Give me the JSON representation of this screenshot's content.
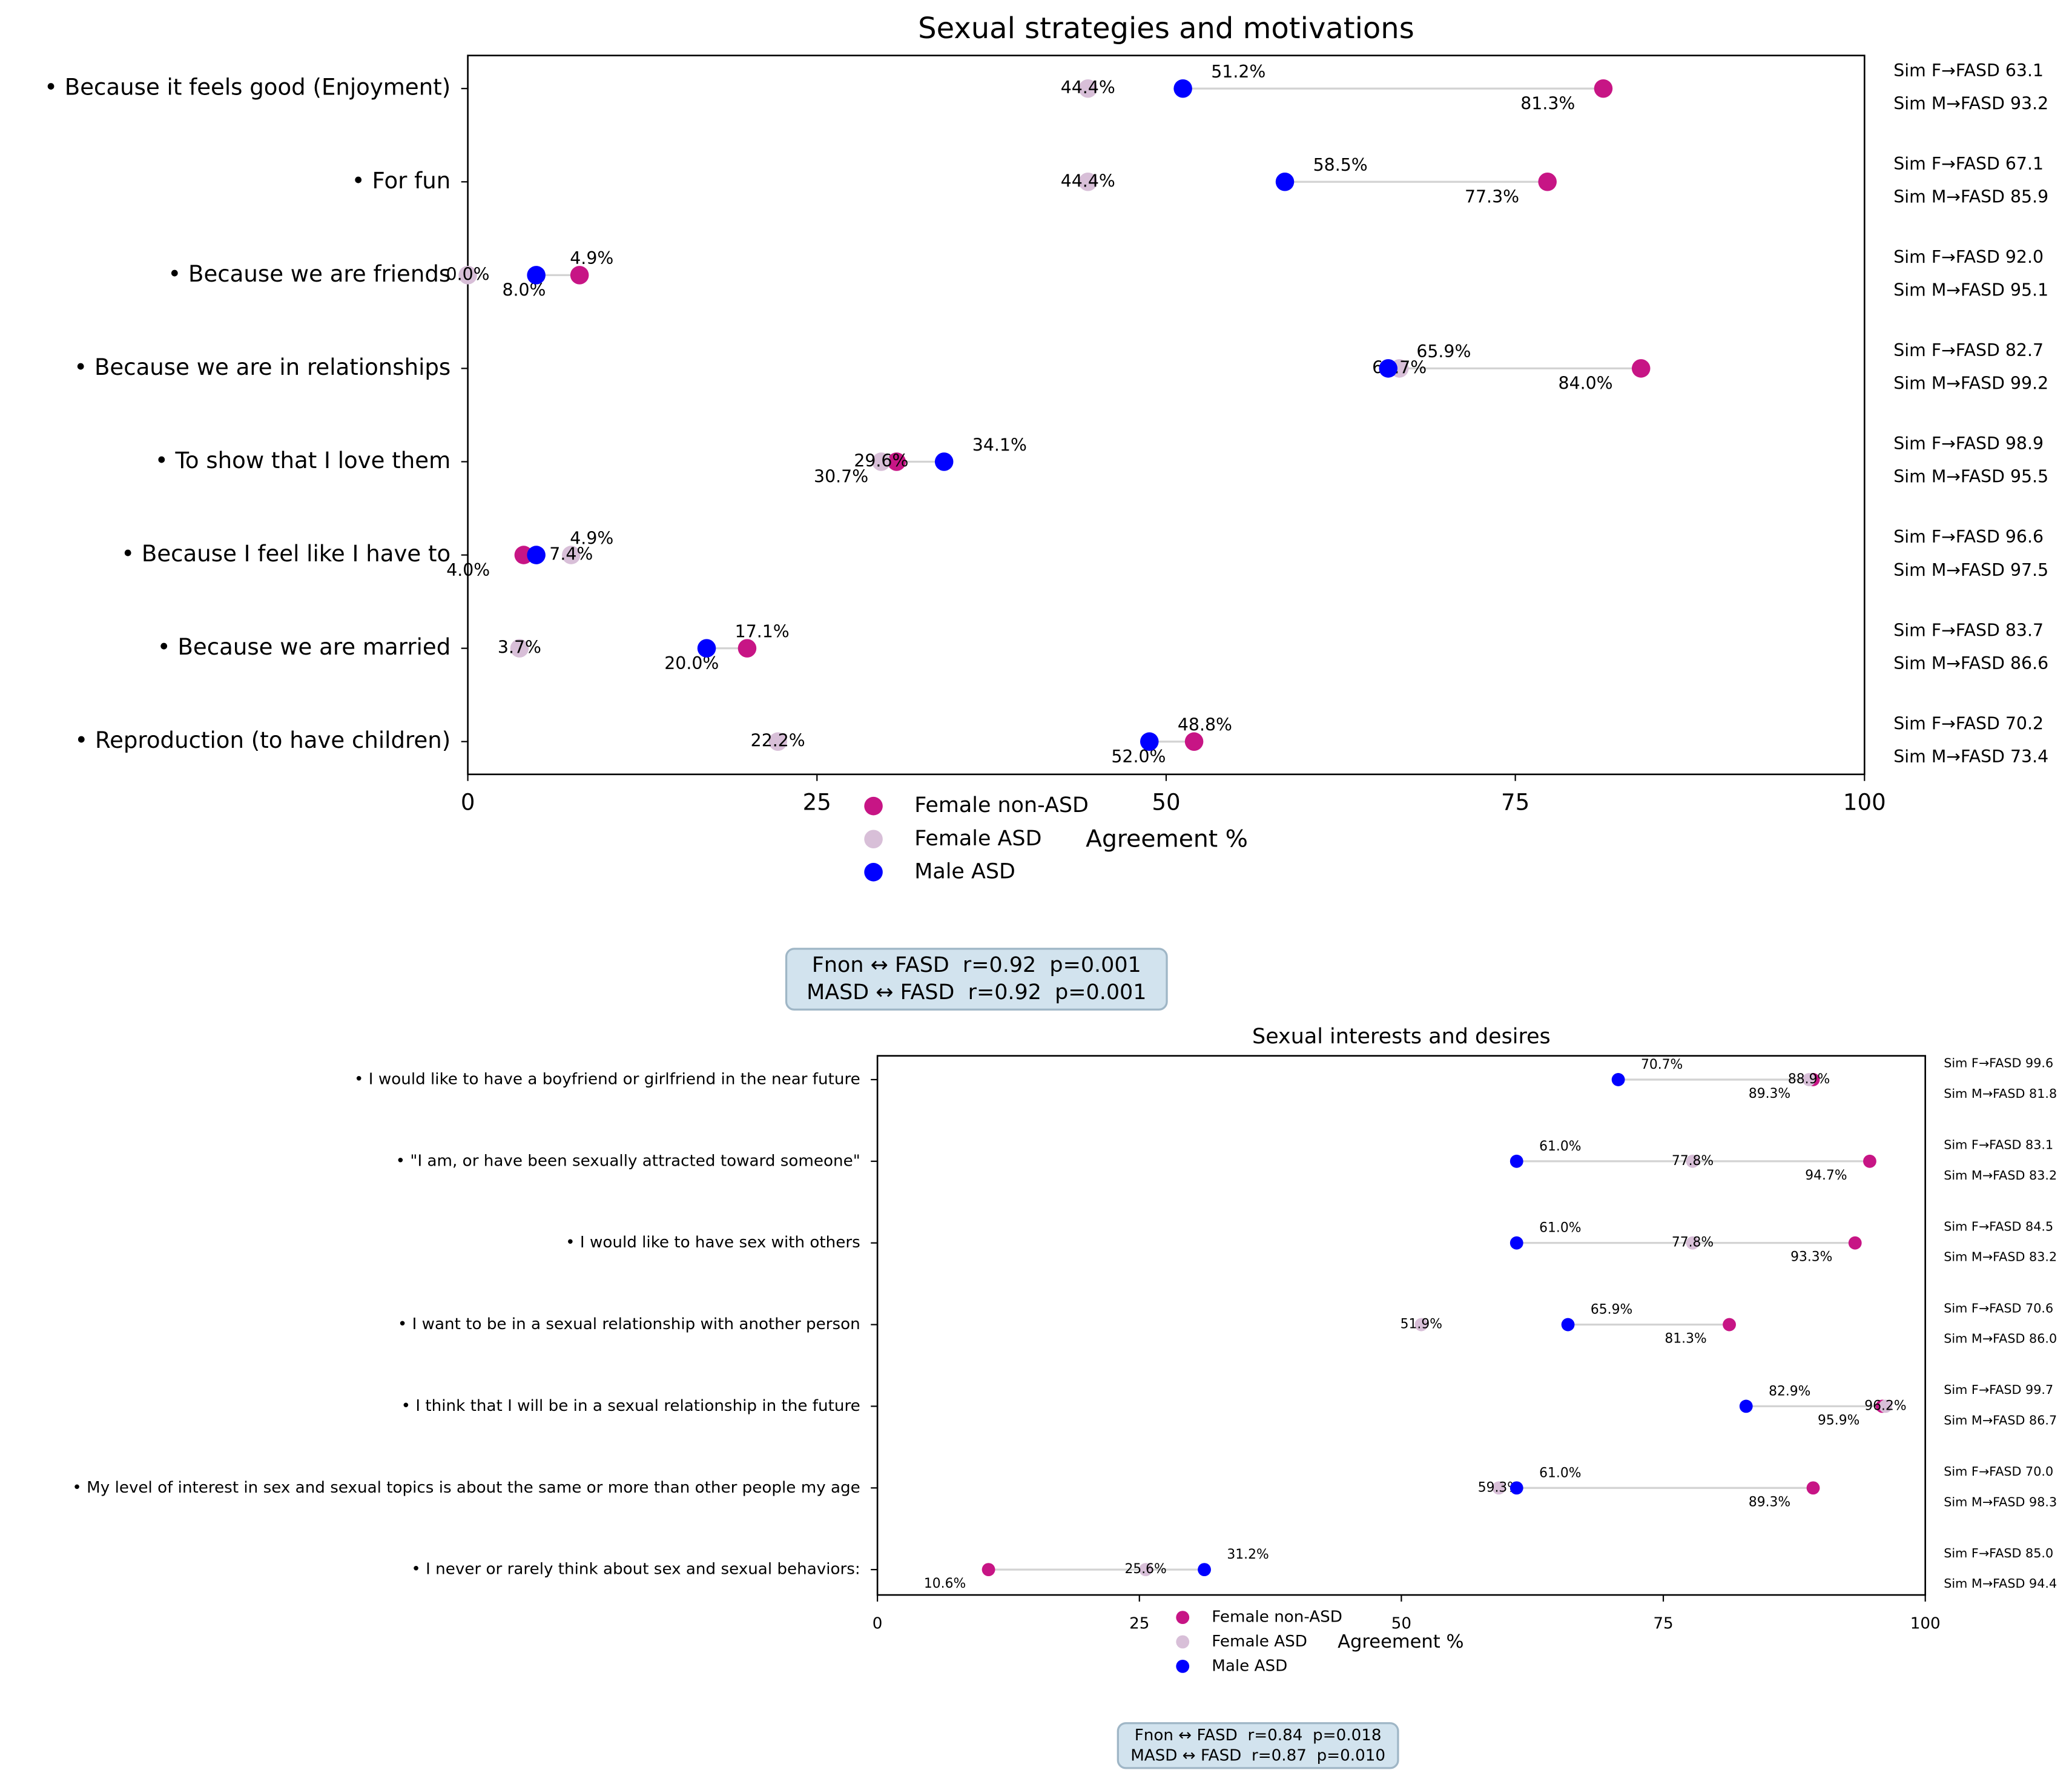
{
  "chart_data": [
    {
      "type": "dumbbell",
      "title": "Sexual strategies and motivations",
      "x_label": "Agreement %",
      "categories": [
        "• Because it feels good (Enjoyment)",
        "• For fun",
        "• Because we are friends",
        "• Because we are in relationships",
        "• To show that I love them",
        "• Because I feel like I have to",
        "• Because we are married",
        "• Reproduction (to have children)"
      ],
      "series": [
        {
          "name": "Female non-ASD",
          "color": "#c71585",
          "values": [
            81.3,
            77.3,
            8.0,
            84.0,
            30.7,
            4.0,
            20.0,
            52.0
          ],
          "value_labels": [
            "81.3%",
            "77.3%",
            "8.0%",
            "84.0%",
            "30.7%",
            "4.0%",
            "20.0%",
            "52.0%"
          ]
        },
        {
          "name": "Female ASD",
          "color": "#d8bfd8",
          "values": [
            44.4,
            44.4,
            0.0,
            66.7,
            29.6,
            7.4,
            3.7,
            22.2
          ],
          "value_labels": [
            "44.4%",
            "44.4%",
            "0.0%",
            "66.7%",
            "29.6%",
            "7.4%",
            "3.7%",
            "22.2%"
          ]
        },
        {
          "name": "Male ASD",
          "color": "#0000ff",
          "values": [
            51.2,
            58.5,
            4.9,
            65.9,
            34.1,
            4.9,
            17.1,
            48.8
          ],
          "value_labels": [
            "51.2%",
            "58.5%",
            "4.9%",
            "65.9%",
            "34.1%",
            "4.9%",
            "17.1%",
            "48.8%"
          ]
        }
      ],
      "annotations": [
        [
          "Sim F→FASD 63.1",
          "Sim M→FASD 93.2"
        ],
        [
          "Sim F→FASD 67.1",
          "Sim M→FASD 85.9"
        ],
        [
          "Sim F→FASD 92.0",
          "Sim M→FASD 95.1"
        ],
        [
          "Sim F→FASD 82.7",
          "Sim M→FASD 99.2"
        ],
        [
          "Sim F→FASD 98.9",
          "Sim M→FASD 95.5"
        ],
        [
          "Sim F→FASD 96.6",
          "Sim M→FASD 97.5"
        ],
        [
          "Sim F→FASD 83.7",
          "Sim M→FASD 86.6"
        ],
        [
          "Sim F→FASD 70.2",
          "Sim M→FASD 73.4"
        ]
      ],
      "stats": [
        "Fnon ↔ FASD  r=0.92  p=0.001",
        "MASD ↔ FASD  r=0.92  p=0.001"
      ],
      "xlim": [
        0,
        100
      ],
      "xticks": [
        0,
        25,
        50,
        75,
        100
      ]
    },
    {
      "type": "dumbbell",
      "title": "Sexual interests and desires",
      "x_label": "Agreement %",
      "categories": [
        "• I would like to have a boyfriend or girlfriend in the near future",
        "• \"I am, or have been sexually attracted toward someone\"",
        "• I would like to have sex with others",
        "• I want to be in a sexual relationship with another person",
        "• I think that I will be in a sexual relationship in the future",
        "• My level of interest in sex and sexual topics is about the same or more than other people my age",
        "• I never or rarely think about sex and sexual behaviors:"
      ],
      "series": [
        {
          "name": "Female non-ASD",
          "color": "#c71585",
          "values": [
            89.3,
            94.7,
            93.3,
            81.3,
            95.9,
            89.3,
            10.6
          ],
          "value_labels": [
            "89.3%",
            "94.7%",
            "93.3%",
            "81.3%",
            "95.9%",
            "89.3%",
            "10.6%"
          ]
        },
        {
          "name": "Female ASD",
          "color": "#d8bfd8",
          "values": [
            88.9,
            77.8,
            77.8,
            51.9,
            96.2,
            59.3,
            25.6
          ],
          "value_labels": [
            "88.9%",
            "77.8%",
            "77.8%",
            "51.9%",
            "96.2%",
            "59.3%",
            "25.6%"
          ]
        },
        {
          "name": "Male ASD",
          "color": "#0000ff",
          "values": [
            70.7,
            61.0,
            61.0,
            65.9,
            82.9,
            61.0,
            31.2
          ],
          "value_labels": [
            "70.7%",
            "61.0%",
            "61.0%",
            "65.9%",
            "82.9%",
            "61.0%",
            "31.2%"
          ]
        }
      ],
      "annotations": [
        [
          "Sim F→FASD 99.6",
          "Sim M→FASD 81.8"
        ],
        [
          "Sim F→FASD 83.1",
          "Sim M→FASD 83.2"
        ],
        [
          "Sim F→FASD 84.5",
          "Sim M→FASD 83.2"
        ],
        [
          "Sim F→FASD 70.6",
          "Sim M→FASD 86.0"
        ],
        [
          "Sim F→FASD 99.7",
          "Sim M→FASD 86.7"
        ],
        [
          "Sim F→FASD 70.0",
          "Sim M→FASD 98.3"
        ],
        [
          "Sim F→FASD 85.0",
          "Sim M→FASD 94.4"
        ]
      ],
      "stats": [
        "Fnon ↔ FASD  r=0.84  p=0.018",
        "MASD ↔ FASD  r=0.87  p=0.010"
      ],
      "xlim": [
        0,
        100
      ],
      "xticks": [
        0,
        25,
        50,
        75,
        100
      ]
    }
  ]
}
